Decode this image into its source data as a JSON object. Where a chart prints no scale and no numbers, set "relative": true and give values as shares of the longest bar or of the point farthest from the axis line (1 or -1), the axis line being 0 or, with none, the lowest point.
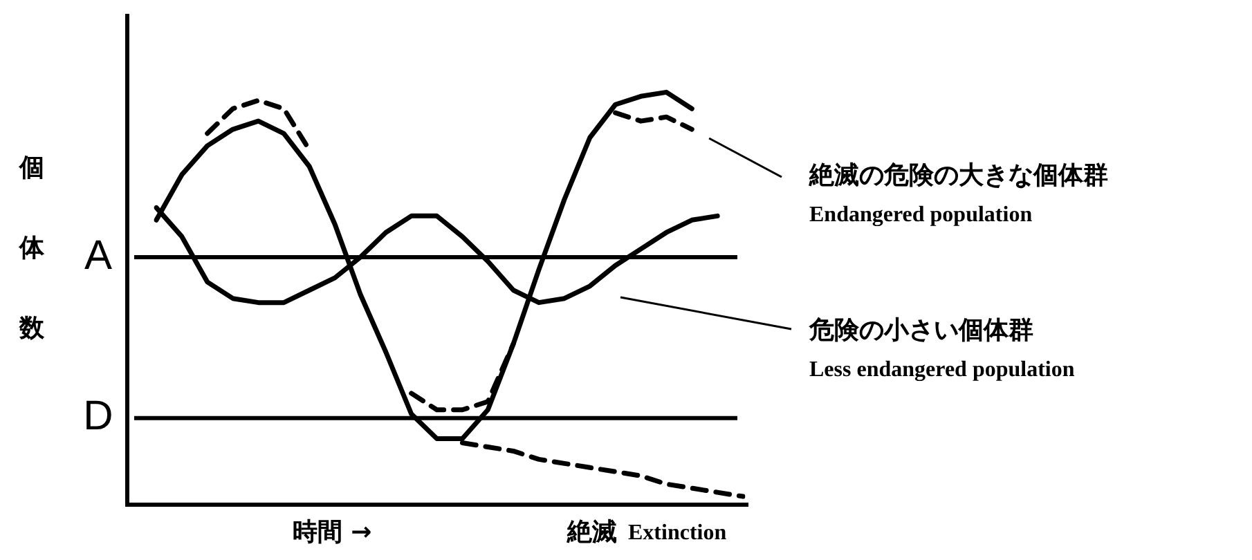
{
  "chart_data": {
    "type": "line",
    "relative": true,
    "ylabel": "個体数",
    "xlabel": "時間 →",
    "categories": [
      null,
      null,
      null,
      null,
      null,
      null,
      null,
      null,
      null,
      null,
      null,
      null,
      null,
      null,
      null,
      null,
      null,
      null,
      null,
      null,
      null,
      null,
      null,
      null
    ],
    "series": [
      {
        "color": "#000000",
        "line_style": "solid",
        "values": [
          0.69,
          0.8,
          0.87,
          0.91,
          0.93,
          0.9,
          0.82,
          0.68,
          0.51,
          0.37,
          0.22,
          0.16,
          0.16,
          0.23,
          0.39,
          0.57,
          0.74,
          0.89,
          0.97,
          0.99,
          1.0,
          0.96,
          null,
          null
        ]
      },
      {
        "color": "#000000",
        "line_style": "solid",
        "values": [
          0.72,
          0.65,
          0.54,
          0.5,
          0.49,
          0.49,
          0.52,
          0.55,
          0.6,
          0.66,
          0.7,
          0.7,
          0.65,
          0.59,
          0.52,
          0.49,
          0.5,
          0.53,
          0.58,
          0.62,
          0.66,
          0.69,
          0.7,
          null
        ]
      },
      {
        "color": "#000000",
        "line_style": "dashed",
        "values": [
          null,
          null,
          0.9,
          0.96,
          0.98,
          0.96,
          0.86,
          null,
          null,
          null,
          null,
          null,
          null,
          null,
          null,
          null,
          null,
          null,
          null,
          null,
          null,
          null,
          null,
          null
        ]
      },
      {
        "color": "#000000",
        "line_style": "dashed",
        "values": [
          null,
          null,
          null,
          null,
          null,
          null,
          null,
          null,
          null,
          null,
          0.27,
          0.23,
          0.23,
          0.25,
          0.39,
          null,
          null,
          null,
          null,
          null,
          null,
          null,
          null,
          null
        ]
      },
      {
        "color": "#000000",
        "line_style": "dashed",
        "values": [
          null,
          null,
          null,
          null,
          null,
          null,
          null,
          null,
          null,
          null,
          null,
          null,
          null,
          null,
          null,
          null,
          null,
          null,
          0.95,
          0.93,
          0.94,
          0.91,
          null,
          null
        ]
      },
      {
        "color": "#000000",
        "line_style": "dashed",
        "values": [
          null,
          null,
          null,
          null,
          null,
          null,
          null,
          null,
          null,
          null,
          null,
          null,
          0.15,
          0.14,
          0.13,
          0.11,
          0.1,
          0.09,
          0.08,
          0.07,
          0.05,
          0.04,
          0.03,
          0.02
        ]
      }
    ],
    "ref_lines": [
      {
        "axis": "y",
        "value": 0.6,
        "label": "A",
        "color": "#000000"
      },
      {
        "axis": "y",
        "value": 0.21,
        "label": "D",
        "color": "#000000"
      }
    ],
    "annotations": [
      "絶滅の危険の大きな個体群\nEndangered population",
      "危険の小さい個体群\nLess endangered population",
      "絶滅  Extinction"
    ]
  }
}
